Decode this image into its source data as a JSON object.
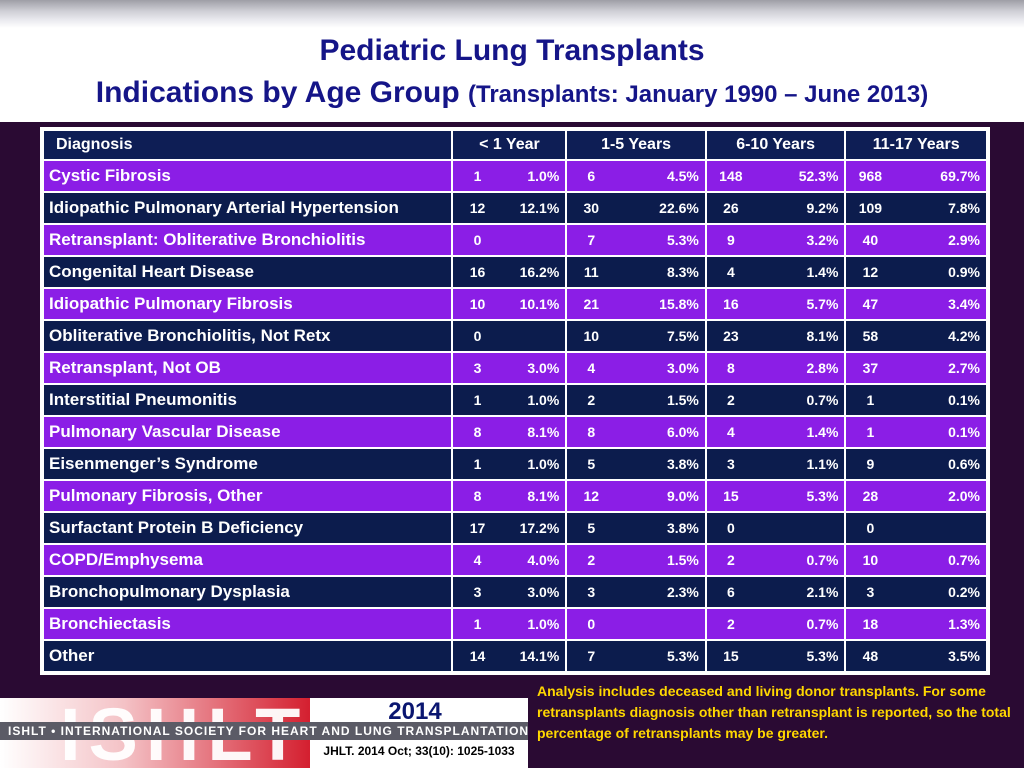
{
  "title": "Pediatric Lung Transplants",
  "subtitle_main": "Indications by Age Group",
  "subtitle_paren": "(Transplants: January 1990 – June 2013)",
  "table": {
    "headers": [
      "Diagnosis",
      "< 1 Year",
      "1-5 Years",
      "6-10 Years",
      "11-17 Years"
    ],
    "rows": [
      {
        "diagnosis": "Cystic Fibrosis",
        "cells": [
          [
            "1",
            "1.0%"
          ],
          [
            "6",
            "4.5%"
          ],
          [
            "148",
            "52.3%"
          ],
          [
            "968",
            "69.7%"
          ]
        ]
      },
      {
        "diagnosis": "Idiopathic Pulmonary Arterial Hypertension",
        "cells": [
          [
            "12",
            "12.1%"
          ],
          [
            "30",
            "22.6%"
          ],
          [
            "26",
            "9.2%"
          ],
          [
            "109",
            "7.8%"
          ]
        ]
      },
      {
        "diagnosis": "Retransplant: Obliterative Bronchiolitis",
        "cells": [
          [
            "0",
            ""
          ],
          [
            "7",
            "5.3%"
          ],
          [
            "9",
            "3.2%"
          ],
          [
            "40",
            "2.9%"
          ]
        ]
      },
      {
        "diagnosis": "Congenital Heart Disease",
        "cells": [
          [
            "16",
            "16.2%"
          ],
          [
            "11",
            "8.3%"
          ],
          [
            "4",
            "1.4%"
          ],
          [
            "12",
            "0.9%"
          ]
        ]
      },
      {
        "diagnosis": "Idiopathic Pulmonary Fibrosis",
        "cells": [
          [
            "10",
            "10.1%"
          ],
          [
            "21",
            "15.8%"
          ],
          [
            "16",
            "5.7%"
          ],
          [
            "47",
            "3.4%"
          ]
        ]
      },
      {
        "diagnosis": "Obliterative Bronchiolitis, Not Retx",
        "cells": [
          [
            "0",
            ""
          ],
          [
            "10",
            "7.5%"
          ],
          [
            "23",
            "8.1%"
          ],
          [
            "58",
            "4.2%"
          ]
        ]
      },
      {
        "diagnosis": "Retransplant, Not OB",
        "cells": [
          [
            "3",
            "3.0%"
          ],
          [
            "4",
            "3.0%"
          ],
          [
            "8",
            "2.8%"
          ],
          [
            "37",
            "2.7%"
          ]
        ]
      },
      {
        "diagnosis": "Interstitial Pneumonitis",
        "cells": [
          [
            "1",
            "1.0%"
          ],
          [
            "2",
            "1.5%"
          ],
          [
            "2",
            "0.7%"
          ],
          [
            "1",
            "0.1%"
          ]
        ]
      },
      {
        "diagnosis": "Pulmonary Vascular Disease",
        "cells": [
          [
            "8",
            "8.1%"
          ],
          [
            "8",
            "6.0%"
          ],
          [
            "4",
            "1.4%"
          ],
          [
            "1",
            "0.1%"
          ]
        ]
      },
      {
        "diagnosis": "Eisenmenger’s Syndrome",
        "cells": [
          [
            "1",
            "1.0%"
          ],
          [
            "5",
            "3.8%"
          ],
          [
            "3",
            "1.1%"
          ],
          [
            "9",
            "0.6%"
          ]
        ]
      },
      {
        "diagnosis": "Pulmonary Fibrosis, Other",
        "cells": [
          [
            "8",
            "8.1%"
          ],
          [
            "12",
            "9.0%"
          ],
          [
            "15",
            "5.3%"
          ],
          [
            "28",
            "2.0%"
          ]
        ]
      },
      {
        "diagnosis": "Surfactant Protein B Deficiency",
        "cells": [
          [
            "17",
            "17.2%"
          ],
          [
            "5",
            "3.8%"
          ],
          [
            "0",
            ""
          ],
          [
            "0",
            ""
          ]
        ]
      },
      {
        "diagnosis": "COPD/Emphysema",
        "cells": [
          [
            "4",
            "4.0%"
          ],
          [
            "2",
            "1.5%"
          ],
          [
            "2",
            "0.7%"
          ],
          [
            "10",
            "0.7%"
          ]
        ]
      },
      {
        "diagnosis": "Bronchopulmonary Dysplasia",
        "cells": [
          [
            "3",
            "3.0%"
          ],
          [
            "3",
            "2.3%"
          ],
          [
            "6",
            "2.1%"
          ],
          [
            "3",
            "0.2%"
          ]
        ]
      },
      {
        "diagnosis": "Bronchiectasis",
        "cells": [
          [
            "1",
            "1.0%"
          ],
          [
            "0",
            ""
          ],
          [
            "2",
            "0.7%"
          ],
          [
            "18",
            "1.3%"
          ]
        ]
      },
      {
        "diagnosis": "Other",
        "cells": [
          [
            "14",
            "14.1%"
          ],
          [
            "7",
            "5.3%"
          ],
          [
            "15",
            "5.3%"
          ],
          [
            "48",
            "3.5%"
          ]
        ]
      }
    ]
  },
  "logo": {
    "wordmark": "ISHLT",
    "strip_text": "ISHLT • INTERNATIONAL SOCIETY FOR HEART AND LUNG TRANSPLANTATION"
  },
  "year": "2014",
  "journal": "JHLT. 2014 Oct; 33(10): 1025-1033",
  "note": "Analysis includes deceased and living donor transplants. For some retransplants diagnosis other than retransplant is reported, so the total percentage of retransplants may be greater.",
  "colors": {
    "background": "#2a0a33",
    "title": "#151588",
    "header_row": "#0e1e55",
    "row_purple": "#8b1ee6",
    "row_navy": "#0c1c4d",
    "note": "#ffd700"
  }
}
